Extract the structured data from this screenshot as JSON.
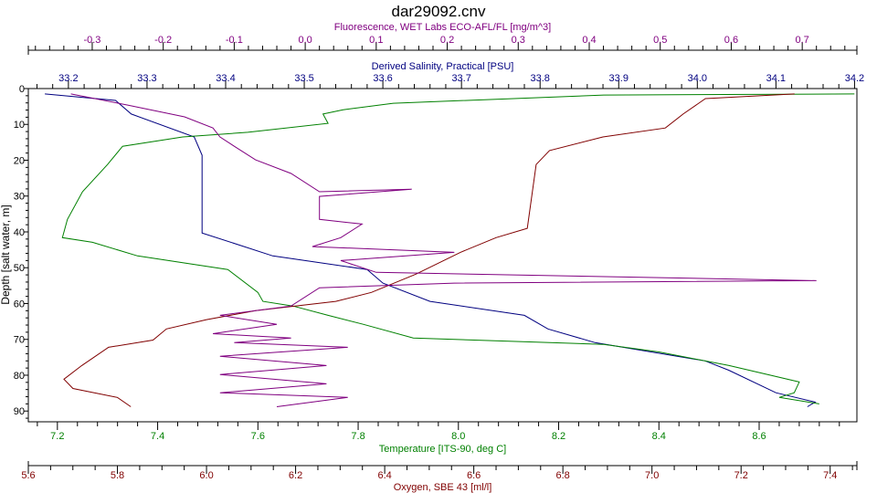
{
  "chart_data": {
    "type": "line",
    "title": "dar29092.cnv",
    "ylabel": "Depth [salt water, m]",
    "ylim": [
      0,
      93
    ],
    "yticks": [
      0,
      10,
      20,
      30,
      40,
      50,
      60,
      70,
      80,
      90
    ],
    "grid": false,
    "axes": [
      {
        "key": "fluorescence",
        "label": "Fluorescence, WET Labs ECO-AFL/FL [mg/m^3]",
        "position": "top-outer",
        "color": "#800080",
        "range": [
          -0.39,
          0.777
        ],
        "ticks": [
          "-0.3",
          "-0.2",
          "-0.1",
          "0.0",
          "0.1",
          "0.2",
          "0.3",
          "0.4",
          "0.5",
          "0.6",
          "0.7"
        ],
        "minor": 0.02
      },
      {
        "key": "salinity",
        "label": "Derived Salinity, Practical [PSU]",
        "position": "top-inner",
        "color": "#000080",
        "range": [
          33.149,
          34.203
        ],
        "ticks": [
          "33.2",
          "33.3",
          "33.4",
          "33.5",
          "33.6",
          "33.7",
          "33.8",
          "33.9",
          "34.0",
          "34.1",
          "34.2"
        ],
        "minor": 0.02
      },
      {
        "key": "temperature",
        "label": "Temperature [ITS-90, deg C]",
        "position": "bottom-inner",
        "color": "#008000",
        "range": [
          7.142,
          8.795
        ],
        "ticks": [
          "7.2",
          "7.4",
          "7.6",
          "7.8",
          "8.0",
          "8.2",
          "8.4",
          "8.6"
        ],
        "minor": 0.04
      },
      {
        "key": "oxygen",
        "label": "Oxygen, SBE 43 [ml/l]",
        "position": "bottom-outer",
        "color": "#800000",
        "range": [
          5.6,
          7.46
        ],
        "ticks": [
          "5.6",
          "5.8",
          "6.0",
          "6.2",
          "6.4",
          "6.6",
          "6.8",
          "7.0",
          "7.2",
          "7.4"
        ],
        "minor": 0.05
      }
    ],
    "series": [
      {
        "name": "Derived Salinity",
        "axis": "salinity",
        "color": "#000080",
        "points": [
          [
            1.5,
            33.17
          ],
          [
            3.3,
            33.26
          ],
          [
            7.1,
            33.28
          ],
          [
            13.5,
            33.36
          ],
          [
            18.6,
            33.37
          ],
          [
            40.3,
            33.37
          ],
          [
            46.7,
            33.46
          ],
          [
            50.5,
            33.58
          ],
          [
            54.3,
            33.6
          ],
          [
            59.4,
            33.66
          ],
          [
            63.3,
            33.78
          ],
          [
            67.1,
            33.81
          ],
          [
            70.9,
            33.87
          ],
          [
            76.0,
            34.01
          ],
          [
            78.6,
            34.04
          ],
          [
            84.9,
            34.1
          ],
          [
            87.5,
            34.15
          ],
          [
            88.8,
            34.14
          ]
        ]
      },
      {
        "name": "Temperature",
        "axis": "temperature",
        "color": "#008000",
        "points": [
          [
            1.5,
            8.79
          ],
          [
            1.8,
            8.29
          ],
          [
            4.1,
            7.87
          ],
          [
            5.9,
            7.77
          ],
          [
            7.1,
            7.73
          ],
          [
            9.7,
            7.74
          ],
          [
            12.2,
            7.58
          ],
          [
            13.5,
            7.45
          ],
          [
            16.1,
            7.33
          ],
          [
            21.2,
            7.3
          ],
          [
            28.8,
            7.25
          ],
          [
            36.5,
            7.22
          ],
          [
            41.6,
            7.21
          ],
          [
            42.9,
            7.27
          ],
          [
            46.7,
            7.36
          ],
          [
            50.5,
            7.54
          ],
          [
            56.9,
            7.6
          ],
          [
            59.4,
            7.61
          ],
          [
            60.7,
            7.67
          ],
          [
            63.3,
            7.74
          ],
          [
            65.8,
            7.81
          ],
          [
            69.6,
            7.91
          ],
          [
            71.4,
            8.29
          ],
          [
            73.5,
            8.4
          ],
          [
            77.3,
            8.54
          ],
          [
            81.9,
            8.68
          ],
          [
            84.9,
            8.67
          ],
          [
            86.2,
            8.64
          ],
          [
            88.0,
            8.72
          ]
        ]
      },
      {
        "name": "Oxygen",
        "axis": "oxygen",
        "color": "#800000",
        "points": [
          [
            1.5,
            7.32
          ],
          [
            2.8,
            7.12
          ],
          [
            7.1,
            7.07
          ],
          [
            11.0,
            7.03
          ],
          [
            13.5,
            6.89
          ],
          [
            17.3,
            6.77
          ],
          [
            21.2,
            6.74
          ],
          [
            39.0,
            6.72
          ],
          [
            41.6,
            6.65
          ],
          [
            45.7,
            6.57
          ],
          [
            51.8,
            6.47
          ],
          [
            56.9,
            6.37
          ],
          [
            59.4,
            6.29
          ],
          [
            62.0,
            6.11
          ],
          [
            64.5,
            6.0
          ],
          [
            67.1,
            5.91
          ],
          [
            70.2,
            5.88
          ],
          [
            72.2,
            5.78
          ],
          [
            77.3,
            5.72
          ],
          [
            81.1,
            5.68
          ],
          [
            83.7,
            5.7
          ],
          [
            86.2,
            5.8
          ],
          [
            88.8,
            5.83
          ]
        ]
      },
      {
        "name": "Fluorescence",
        "axis": "fluorescence",
        "color": "#800080",
        "points": [
          [
            1.5,
            -0.33
          ],
          [
            4.6,
            -0.25
          ],
          [
            7.9,
            -0.17
          ],
          [
            11.0,
            -0.13
          ],
          [
            13.5,
            -0.12
          ],
          [
            16.1,
            -0.1
          ],
          [
            19.9,
            -0.07
          ],
          [
            23.7,
            -0.02
          ],
          [
            28.8,
            0.02
          ],
          [
            28.1,
            0.15
          ],
          [
            30.1,
            0.02
          ],
          [
            36.5,
            0.02
          ],
          [
            37.8,
            0.08
          ],
          [
            41.6,
            0.05
          ],
          [
            44.1,
            0.01
          ],
          [
            45.7,
            0.21
          ],
          [
            48.0,
            0.05
          ],
          [
            51.3,
            0.1
          ],
          [
            53.6,
            0.72
          ],
          [
            54.3,
            0.21
          ],
          [
            55.6,
            0.02
          ],
          [
            60.7,
            -0.02
          ],
          [
            63.3,
            -0.12
          ],
          [
            65.8,
            -0.04
          ],
          [
            68.4,
            -0.13
          ],
          [
            69.6,
            -0.02
          ],
          [
            70.9,
            -0.1
          ],
          [
            72.2,
            0.06
          ],
          [
            74.7,
            -0.12
          ],
          [
            77.3,
            0.03
          ],
          [
            79.8,
            -0.12
          ],
          [
            82.4,
            0.03
          ],
          [
            84.9,
            -0.12
          ],
          [
            86.2,
            0.06
          ],
          [
            88.8,
            -0.04
          ]
        ]
      }
    ]
  }
}
